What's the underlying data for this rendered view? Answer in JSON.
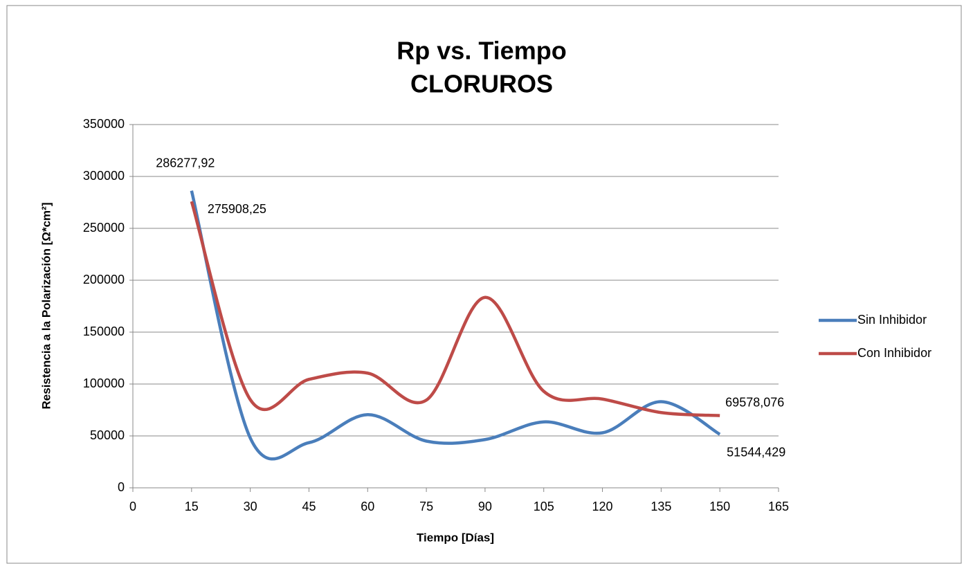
{
  "chart_data": {
    "type": "line",
    "title": "Rp vs. Tiempo",
    "subtitle": "CLORUROS",
    "xlabel": "Tiempo [Días]",
    "ylabel": "Resistencia a la Polarización [Ω*cm²]",
    "x": [
      15,
      30,
      45,
      60,
      75,
      90,
      105,
      120,
      135,
      150
    ],
    "series": [
      {
        "name": "Sin Inhibidor",
        "color": "#4a7ebb",
        "values": [
          286277.92,
          48000,
          43500,
          70500,
          45000,
          46500,
          63500,
          53000,
          83000,
          51544.429
        ],
        "value_labels": [
          "286277,92",
          null,
          null,
          null,
          null,
          null,
          null,
          null,
          null,
          "51544,429"
        ]
      },
      {
        "name": "Con Inhibidor",
        "color": "#be4b48",
        "values": [
          275908.25,
          85000,
          104500,
          110500,
          84500,
          183500,
          93000,
          85500,
          72500,
          69578.076
        ],
        "value_labels": [
          "275908,25",
          null,
          null,
          null,
          null,
          null,
          null,
          null,
          null,
          "69578,076"
        ]
      }
    ],
    "xlim": [
      0,
      165
    ],
    "xticks": [
      0,
      15,
      30,
      45,
      60,
      75,
      90,
      105,
      120,
      135,
      150,
      165
    ],
    "ylim": [
      0,
      350000
    ],
    "yticks": [
      0,
      50000,
      100000,
      150000,
      200000,
      250000,
      300000,
      350000
    ],
    "grid": true,
    "smooth": true,
    "legend": "right"
  }
}
